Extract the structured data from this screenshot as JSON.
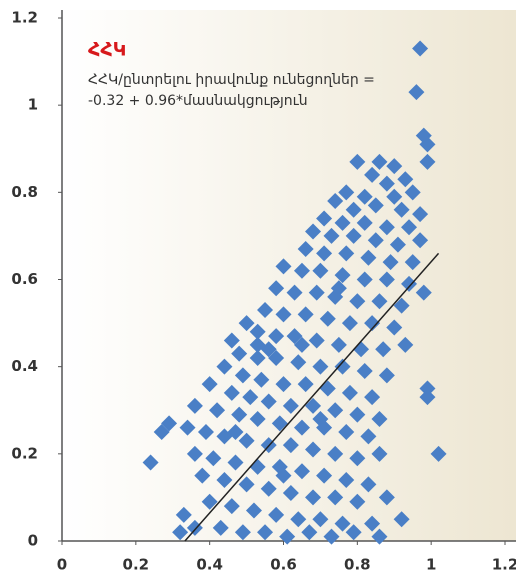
{
  "chart_data": {
    "type": "scatter",
    "title": "ՀՀԿ",
    "subtitle": [
      "ՀՀԿ/ընտրելու իրավունք ունեցողներ =",
      "-0.32 + 0.96*մասնակցություն"
    ],
    "color": "#4a7fc6",
    "title_color": "#d7191c",
    "xlim": [
      0,
      1.2
    ],
    "ylim": [
      0,
      1.2
    ],
    "xticks": [
      0,
      0.2,
      0.4,
      0.6,
      0.8,
      1,
      1.2
    ],
    "yticks": [
      0,
      0.2,
      0.4,
      0.6,
      0.8,
      1,
      1.2
    ],
    "trend_line": {
      "x": [
        0.333,
        1.02
      ],
      "y": [
        0,
        0.66
      ],
      "color": "#222222"
    },
    "x": [
      0.97,
      0.96,
      0.98,
      0.99,
      0.99,
      0.8,
      0.86,
      0.9,
      0.84,
      0.88,
      0.93,
      0.77,
      0.82,
      0.9,
      0.95,
      0.74,
      0.79,
      0.85,
      0.92,
      0.97,
      0.71,
      0.76,
      0.82,
      0.88,
      0.94,
      0.68,
      0.73,
      0.79,
      0.85,
      0.91,
      0.97,
      0.66,
      0.71,
      0.77,
      0.83,
      0.89,
      0.95,
      0.6,
      0.65,
      0.7,
      0.76,
      0.82,
      0.88,
      0.94,
      0.58,
      0.63,
      0.69,
      0.74,
      0.8,
      0.86,
      0.92,
      0.98,
      0.55,
      0.6,
      0.66,
      0.72,
      0.78,
      0.84,
      0.9,
      0.5,
      0.53,
      0.58,
      0.63,
      0.69,
      0.75,
      0.81,
      0.87,
      0.93,
      0.46,
      0.48,
      0.53,
      0.58,
      0.64,
      0.7,
      0.76,
      0.82,
      0.88,
      0.44,
      0.49,
      0.54,
      0.6,
      0.66,
      0.72,
      0.78,
      0.84,
      0.99,
      0.99,
      0.4,
      0.46,
      0.51,
      0.56,
      0.62,
      0.68,
      0.74,
      0.8,
      0.86,
      0.36,
      0.42,
      0.48,
      0.53,
      0.59,
      0.65,
      0.71,
      0.77,
      0.83,
      0.29,
      0.27,
      0.34,
      0.39,
      0.44,
      0.5,
      0.56,
      0.62,
      0.68,
      0.74,
      0.8,
      0.86,
      1.02,
      0.24,
      0.36,
      0.41,
      0.47,
      0.53,
      0.59,
      0.65,
      0.71,
      0.77,
      0.83,
      0.38,
      0.44,
      0.5,
      0.56,
      0.62,
      0.68,
      0.74,
      0.8,
      0.88,
      0.33,
      0.4,
      0.46,
      0.52,
      0.58,
      0.64,
      0.7,
      0.76,
      0.84,
      0.92,
      0.36,
      0.32,
      0.43,
      0.49,
      0.55,
      0.61,
      0.67,
      0.73,
      0.79,
      0.86,
      0.56,
      0.53,
      0.47,
      0.6,
      0.7,
      0.65,
      0.75
    ],
    "y": [
      1.13,
      1.03,
      0.93,
      0.91,
      0.87,
      0.87,
      0.87,
      0.86,
      0.84,
      0.82,
      0.83,
      0.8,
      0.79,
      0.79,
      0.8,
      0.78,
      0.76,
      0.77,
      0.76,
      0.75,
      0.74,
      0.73,
      0.73,
      0.72,
      0.72,
      0.71,
      0.7,
      0.7,
      0.69,
      0.68,
      0.69,
      0.67,
      0.66,
      0.66,
      0.65,
      0.64,
      0.64,
      0.63,
      0.62,
      0.62,
      0.61,
      0.6,
      0.6,
      0.59,
      0.58,
      0.57,
      0.57,
      0.56,
      0.55,
      0.55,
      0.54,
      0.57,
      0.53,
      0.52,
      0.52,
      0.51,
      0.5,
      0.5,
      0.49,
      0.5,
      0.48,
      0.47,
      0.47,
      0.46,
      0.45,
      0.44,
      0.44,
      0.45,
      0.46,
      0.43,
      0.42,
      0.42,
      0.41,
      0.4,
      0.4,
      0.39,
      0.38,
      0.4,
      0.38,
      0.37,
      0.36,
      0.36,
      0.35,
      0.34,
      0.33,
      0.35,
      0.33,
      0.36,
      0.34,
      0.33,
      0.32,
      0.31,
      0.31,
      0.3,
      0.29,
      0.28,
      0.31,
      0.3,
      0.29,
      0.28,
      0.27,
      0.26,
      0.26,
      0.25,
      0.24,
      0.27,
      0.25,
      0.26,
      0.25,
      0.24,
      0.23,
      0.22,
      0.22,
      0.21,
      0.2,
      0.19,
      0.2,
      0.2,
      0.18,
      0.2,
      0.19,
      0.18,
      0.17,
      0.17,
      0.16,
      0.15,
      0.14,
      0.13,
      0.15,
      0.14,
      0.13,
      0.12,
      0.11,
      0.1,
      0.1,
      0.09,
      0.1,
      0.06,
      0.09,
      0.08,
      0.07,
      0.06,
      0.05,
      0.05,
      0.04,
      0.04,
      0.05,
      0.03,
      0.02,
      0.03,
      0.02,
      0.02,
      0.01,
      0.02,
      0.01,
      0.02,
      0.01,
      0.44,
      0.45,
      0.25,
      0.15,
      0.28,
      0.45,
      0.58
    ]
  }
}
